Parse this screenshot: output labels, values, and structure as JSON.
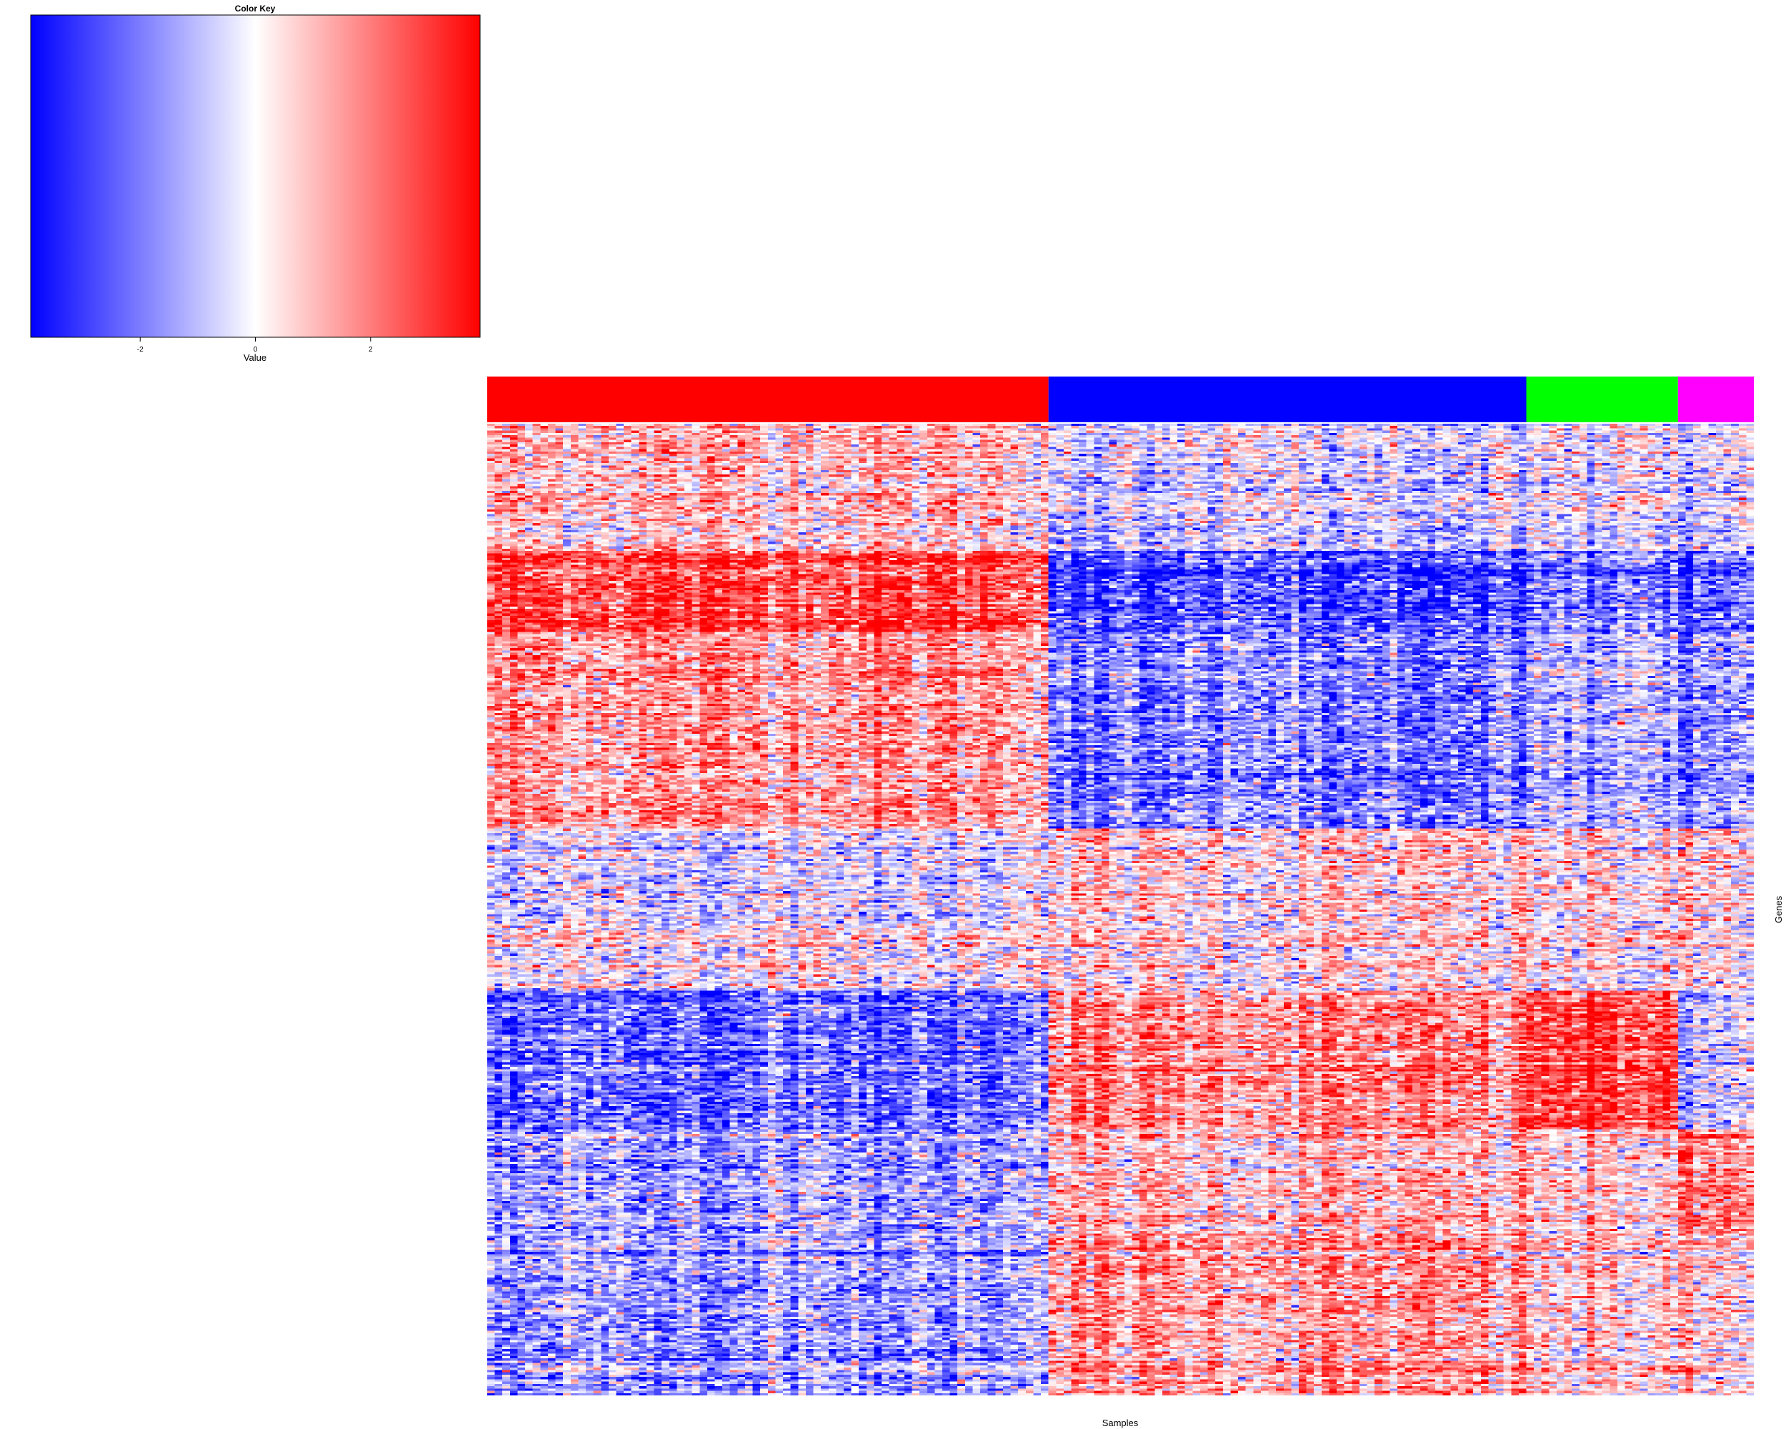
{
  "chart_data": {
    "type": "heatmap",
    "color_key": {
      "title": "Color Key",
      "xlabel": "Value",
      "range": [
        -3.9,
        3.9
      ],
      "ticks": [
        -2,
        0,
        2
      ],
      "tick_labels": [
        "-2",
        "0",
        "2"
      ],
      "colors": {
        "low": "#0000ff",
        "mid": "#ffffff",
        "high": "#ff0000"
      }
    },
    "xlabel": "Samples",
    "ylabel": "Genes",
    "n_samples": 167,
    "n_genes": 420,
    "sample_groups": [
      {
        "color": "#ff0000",
        "count": 74
      },
      {
        "color": "#0000ff",
        "count": 63
      },
      {
        "color": "#00ff00",
        "count": 20
      },
      {
        "color": "#ff00ff",
        "count": 10
      }
    ],
    "gene_clusters": [
      {
        "rows": 55,
        "mean_by_group": [
          0.9,
          -0.6,
          -0.3,
          -0.5
        ]
      },
      {
        "rows": 35,
        "mean_by_group": [
          2.8,
          -2.8,
          -2.0,
          -2.5
        ]
      },
      {
        "rows": 85,
        "mean_by_group": [
          1.6,
          -1.8,
          -1.0,
          -1.5
        ]
      },
      {
        "rows": 40,
        "mean_by_group": [
          -0.5,
          0.6,
          0.4,
          0.5
        ]
      },
      {
        "rows": 30,
        "mean_by_group": [
          -0.1,
          0.2,
          0.1,
          0.1
        ]
      },
      {
        "rows": 60,
        "mean_by_group": [
          -2.4,
          1.6,
          2.8,
          -0.8
        ]
      },
      {
        "rows": 45,
        "mean_by_group": [
          -1.3,
          1.0,
          0.8,
          2.0
        ]
      },
      {
        "rows": 70,
        "mean_by_group": [
          -1.5,
          1.4,
          0.6,
          0.5
        ]
      }
    ]
  }
}
